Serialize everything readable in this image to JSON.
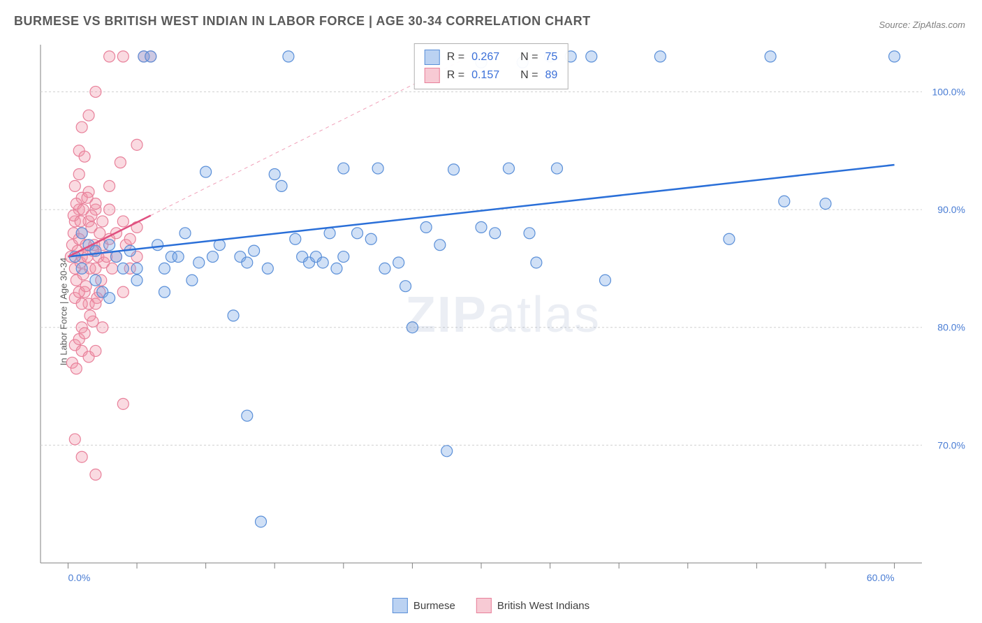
{
  "title": "BURMESE VS BRITISH WEST INDIAN IN LABOR FORCE | AGE 30-34 CORRELATION CHART",
  "source": "Source: ZipAtlas.com",
  "watermark": "ZIPatlas",
  "ylabel": "In Labor Force | Age 30-34",
  "chart": {
    "type": "scatter",
    "xlim": [
      -2,
      62
    ],
    "ylim": [
      60,
      104
    ],
    "xtick_labels": [
      "0.0%",
      "60.0%"
    ],
    "xtick_positions": [
      0,
      60
    ],
    "xtick_minor": [
      5,
      10,
      15,
      20,
      25,
      30,
      35,
      40,
      45,
      50,
      55
    ],
    "ytick_labels": [
      "70.0%",
      "80.0%",
      "90.0%",
      "100.0%"
    ],
    "ytick_positions": [
      70,
      80,
      90,
      100
    ],
    "grid_color": "#d0d0d0",
    "axis_color": "#808080",
    "tick_label_color": "#4a7dd4",
    "tick_label_fontsize": 14,
    "background": "#ffffff",
    "marker_radius": 8,
    "marker_stroke_width": 1.2,
    "series": [
      {
        "name": "Burmese",
        "fill": "rgba(120,165,230,0.35)",
        "stroke": "#5a8fd8",
        "r": 0.267,
        "n": 75,
        "trendline": {
          "x1": 0,
          "y1": 86.0,
          "x2": 60,
          "y2": 93.8,
          "color": "#2a6fd8",
          "width": 2.5,
          "dash": "none"
        },
        "trendline_extrap": {
          "x1": 0,
          "y1": 86.0,
          "x2": 60,
          "y2": 93.8,
          "color": "#2a6fd8",
          "width": 1,
          "dash": "4 4",
          "hidden": true
        },
        "points": [
          [
            0.5,
            86
          ],
          [
            1,
            85
          ],
          [
            1.5,
            87
          ],
          [
            1,
            88
          ],
          [
            2,
            86.5
          ],
          [
            2,
            84
          ],
          [
            2.5,
            83
          ],
          [
            3,
            87
          ],
          [
            3,
            82.5
          ],
          [
            3.5,
            86
          ],
          [
            4,
            85
          ],
          [
            4.5,
            86.5
          ],
          [
            5,
            85
          ],
          [
            5,
            84
          ],
          [
            5.5,
            103
          ],
          [
            6,
            103
          ],
          [
            6.5,
            87
          ],
          [
            7,
            85
          ],
          [
            7,
            83
          ],
          [
            7.5,
            86
          ],
          [
            8,
            86
          ],
          [
            8.5,
            88
          ],
          [
            9,
            84
          ],
          [
            9.5,
            85.5
          ],
          [
            10,
            93.2
          ],
          [
            10.5,
            86
          ],
          [
            11,
            87
          ],
          [
            12,
            81
          ],
          [
            12.5,
            86
          ],
          [
            13,
            85.5
          ],
          [
            13.5,
            86.5
          ],
          [
            14,
            63.5
          ],
          [
            14.5,
            85
          ],
          [
            13,
            72.5
          ],
          [
            15,
            93
          ],
          [
            15.5,
            92
          ],
          [
            16,
            103
          ],
          [
            16.5,
            87.5
          ],
          [
            17,
            86
          ],
          [
            17.5,
            85.5
          ],
          [
            18,
            86
          ],
          [
            18.5,
            85.5
          ],
          [
            19,
            88
          ],
          [
            19.5,
            85
          ],
          [
            20,
            93.5
          ],
          [
            20,
            86
          ],
          [
            21,
            88
          ],
          [
            22,
            87.5
          ],
          [
            22.5,
            93.5
          ],
          [
            23,
            85
          ],
          [
            24,
            85.5
          ],
          [
            24.5,
            83.5
          ],
          [
            25,
            80
          ],
          [
            26,
            88.5
          ],
          [
            27,
            87
          ],
          [
            27.5,
            69.5
          ],
          [
            28,
            93.4
          ],
          [
            30,
            102.5
          ],
          [
            30,
            88.5
          ],
          [
            32,
            93.5
          ],
          [
            33,
            102.5
          ],
          [
            33.5,
            88
          ],
          [
            34,
            85.5
          ],
          [
            35,
            103
          ],
          [
            36.5,
            103
          ],
          [
            38,
            103
          ],
          [
            39,
            84
          ],
          [
            48,
            87.5
          ],
          [
            52,
            90.7
          ],
          [
            55,
            90.5
          ],
          [
            51,
            103
          ],
          [
            43,
            103
          ],
          [
            35.5,
            93.5
          ],
          [
            31,
            88
          ],
          [
            60,
            103
          ]
        ]
      },
      {
        "name": "British West Indians",
        "fill": "rgba(240,150,170,0.35)",
        "stroke": "#e8809a",
        "r": 0.157,
        "n": 89,
        "trendline": {
          "x1": 0,
          "y1": 86.0,
          "x2": 6,
          "y2": 89.5,
          "color": "#e05080",
          "width": 2.5,
          "dash": "none"
        },
        "trendline_extrap": {
          "x1": 6,
          "y1": 89.5,
          "x2": 30,
          "y2": 103.5,
          "color": "#f0a0b8",
          "width": 1,
          "dash": "5 5"
        },
        "points": [
          [
            0.2,
            86
          ],
          [
            0.3,
            87
          ],
          [
            0.4,
            88
          ],
          [
            0.5,
            85
          ],
          [
            0.5,
            89
          ],
          [
            0.6,
            84
          ],
          [
            0.7,
            86.5
          ],
          [
            0.8,
            87.5
          ],
          [
            0.8,
            90
          ],
          [
            0.9,
            85.5
          ],
          [
            1,
            86
          ],
          [
            1,
            88
          ],
          [
            1,
            91
          ],
          [
            1.1,
            84.5
          ],
          [
            1.2,
            83
          ],
          [
            1.3,
            87
          ],
          [
            1.4,
            86
          ],
          [
            1.5,
            89
          ],
          [
            1.5,
            82
          ],
          [
            1.6,
            85
          ],
          [
            1.7,
            88.5
          ],
          [
            1.8,
            86.5
          ],
          [
            1.9,
            87
          ],
          [
            2,
            85
          ],
          [
            2,
            90
          ],
          [
            2.1,
            82.5
          ],
          [
            2.2,
            86
          ],
          [
            2.3,
            88
          ],
          [
            2.4,
            84
          ],
          [
            2.5,
            87
          ],
          [
            2.6,
            85.5
          ],
          [
            2.8,
            86
          ],
          [
            3,
            87.5
          ],
          [
            3,
            92
          ],
          [
            3.2,
            85
          ],
          [
            3.5,
            86
          ],
          [
            3.8,
            94
          ],
          [
            4,
            83
          ],
          [
            4.2,
            87
          ],
          [
            4.5,
            85
          ],
          [
            5,
            86
          ],
          [
            5,
            95.5
          ],
          [
            5.5,
            103
          ],
          [
            6,
            103
          ],
          [
            0.3,
            77
          ],
          [
            0.5,
            78.5
          ],
          [
            0.6,
            76.5
          ],
          [
            0.8,
            79
          ],
          [
            1,
            78
          ],
          [
            1,
            80
          ],
          [
            1.2,
            79.5
          ],
          [
            1.5,
            77.5
          ],
          [
            1.8,
            80.5
          ],
          [
            2,
            78
          ],
          [
            2.5,
            80
          ],
          [
            4,
            73.5
          ],
          [
            0.5,
            70.5
          ],
          [
            1,
            69
          ],
          [
            2,
            67.5
          ],
          [
            0.8,
            95
          ],
          [
            1,
            97
          ],
          [
            1.5,
            98
          ],
          [
            2,
            100
          ],
          [
            3,
            103
          ],
          [
            4,
            103
          ],
          [
            0.5,
            92
          ],
          [
            0.8,
            93
          ],
          [
            1.2,
            94.5
          ],
          [
            1.5,
            91.5
          ],
          [
            0.5,
            82.5
          ],
          [
            0.8,
            83
          ],
          [
            1,
            82
          ],
          [
            1.3,
            83.5
          ],
          [
            1.6,
            81
          ],
          [
            2,
            82
          ],
          [
            2.3,
            83
          ],
          [
            0.4,
            89.5
          ],
          [
            0.6,
            90.5
          ],
          [
            0.9,
            89
          ],
          [
            1.1,
            90
          ],
          [
            1.4,
            91
          ],
          [
            1.7,
            89.5
          ],
          [
            2,
            90.5
          ],
          [
            2.5,
            89
          ],
          [
            3,
            90
          ],
          [
            3.5,
            88
          ],
          [
            4,
            89
          ],
          [
            4.5,
            87.5
          ],
          [
            5,
            88.5
          ]
        ]
      }
    ]
  },
  "stats_box": {
    "rows": [
      {
        "swatch_fill": "rgba(120,165,230,0.5)",
        "swatch_stroke": "#5a8fd8",
        "r": "0.267",
        "n": "75"
      },
      {
        "swatch_fill": "rgba(240,150,170,0.5)",
        "swatch_stroke": "#e8809a",
        "r": "0.157",
        "n": "89"
      }
    ],
    "r_label": "R =",
    "n_label": "N ="
  },
  "legend": {
    "items": [
      {
        "label": "Burmese",
        "fill": "rgba(120,165,230,0.5)",
        "stroke": "#5a8fd8"
      },
      {
        "label": "British West Indians",
        "fill": "rgba(240,150,170,0.5)",
        "stroke": "#e8809a"
      }
    ]
  }
}
